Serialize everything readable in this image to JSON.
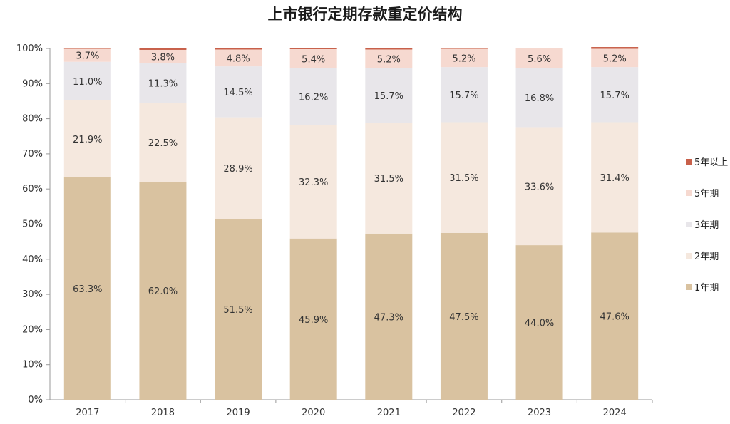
{
  "chart_data": {
    "type": "bar",
    "stacked": true,
    "percent": true,
    "title": "上市银行定期存款重定价结构",
    "categories": [
      "2017",
      "2018",
      "2019",
      "2020",
      "2021",
      "2022",
      "2023",
      "2024"
    ],
    "ylim": [
      0,
      100
    ],
    "yticks": [
      "0%",
      "10%",
      "20%",
      "30%",
      "40%",
      "50%",
      "60%",
      "70%",
      "80%",
      "90%",
      "100%"
    ],
    "legend_position": "right",
    "grid": false,
    "series": [
      {
        "name": "1年期",
        "color": "#d9c2a0",
        "values": [
          63.3,
          62.0,
          51.5,
          45.9,
          47.3,
          47.5,
          44.0,
          47.6
        ],
        "labels": [
          "63.3%",
          "62.0%",
          "51.5%",
          "45.9%",
          "47.3%",
          "47.5%",
          "44.0%",
          "47.6%"
        ]
      },
      {
        "name": "2年期",
        "color": "#f5e8de",
        "values": [
          21.9,
          22.5,
          28.9,
          32.3,
          31.5,
          31.5,
          33.6,
          31.4
        ],
        "labels": [
          "21.9%",
          "22.5%",
          "28.9%",
          "32.3%",
          "31.5%",
          "31.5%",
          "33.6%",
          "31.4%"
        ]
      },
      {
        "name": "3年期",
        "color": "#e8e6ea",
        "values": [
          11.0,
          11.3,
          14.5,
          16.2,
          15.7,
          15.7,
          16.8,
          15.7
        ],
        "labels": [
          "11.0%",
          "11.3%",
          "14.5%",
          "16.2%",
          "15.7%",
          "15.7%",
          "16.8%",
          "15.7%"
        ]
      },
      {
        "name": "5年期",
        "color": "#f6d9d0",
        "values": [
          3.7,
          3.8,
          4.8,
          5.4,
          5.2,
          5.2,
          5.6,
          5.2
        ],
        "labels": [
          "3.7%",
          "3.8%",
          "4.8%",
          "5.4%",
          "5.2%",
          "5.2%",
          "5.6%",
          "5.2%"
        ]
      },
      {
        "name": "5年以上",
        "color": "#c8604a",
        "values": [
          0.1,
          0.4,
          0.3,
          0.2,
          0.3,
          0.1,
          0.0,
          0.5
        ]
      }
    ]
  }
}
